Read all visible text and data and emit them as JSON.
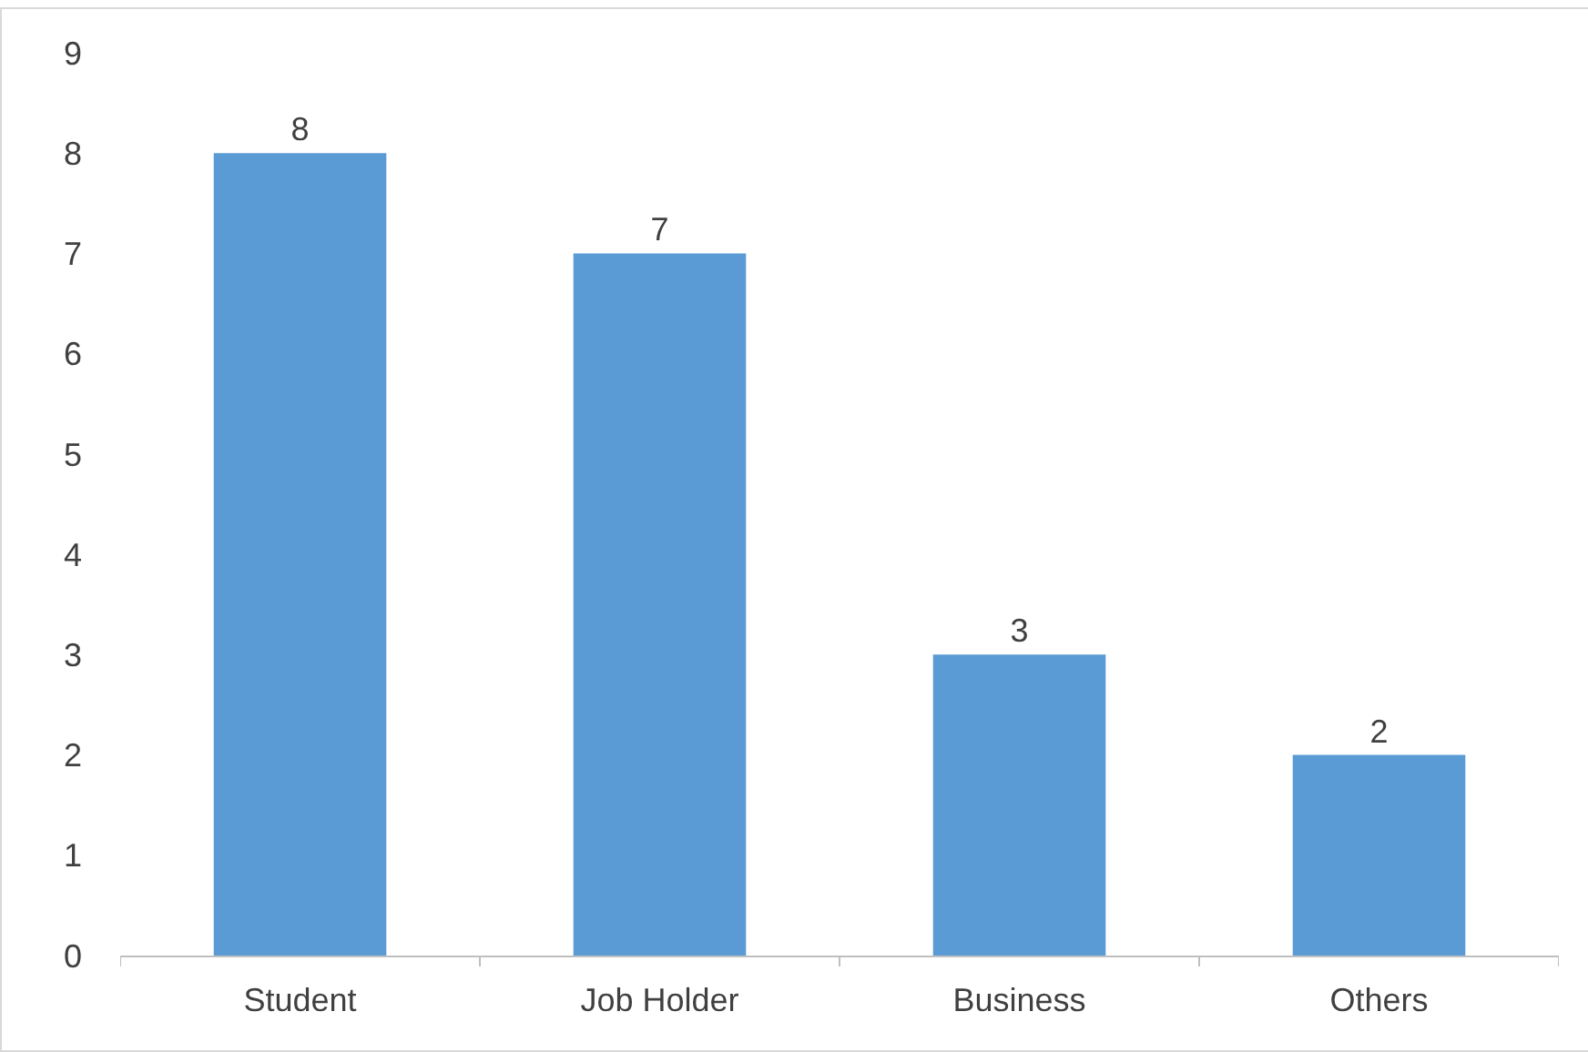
{
  "chart_data": {
    "type": "bar",
    "categories": [
      "Student",
      "Job Holder",
      "Business",
      "Others"
    ],
    "values": [
      8,
      7,
      3,
      2
    ],
    "color": "#5b9bd5",
    "ylim": [
      0,
      9
    ],
    "yticks": [
      0,
      1,
      2,
      3,
      4,
      5,
      6,
      7,
      8,
      9
    ],
    "grid": false,
    "data_labels": true
  }
}
